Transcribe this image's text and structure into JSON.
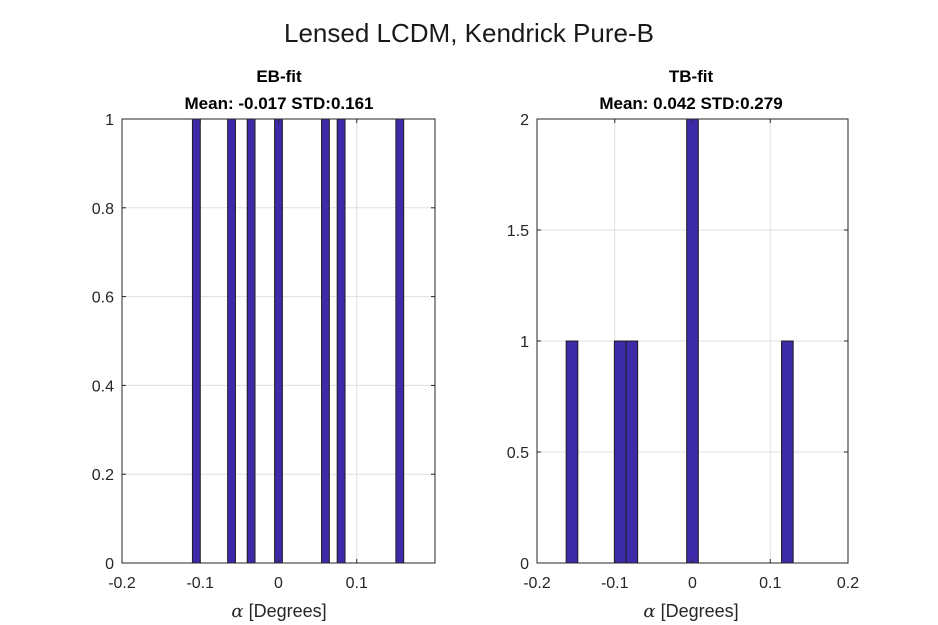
{
  "figure": {
    "title": "Lensed LCDM, Kendrick Pure-B",
    "bar_color": "#3c2aa8"
  },
  "chart_data": [
    {
      "type": "bar",
      "title": "EB-fit",
      "subtitle": "Mean: -0.017 STD:0.161",
      "xlabel_symbol": "α",
      "xlabel": "[Degrees]",
      "xlim": [
        -0.2,
        0.2
      ],
      "ylim": [
        0,
        1
      ],
      "xticks": [
        -0.2,
        -0.1,
        0,
        0.1
      ],
      "xtick_labels": [
        "-0.2",
        "-0.1",
        "0",
        "0.1"
      ],
      "yticks": [
        0,
        0.2,
        0.4,
        0.6,
        0.8,
        1
      ],
      "ytick_labels": [
        "0",
        "0.2",
        "0.4",
        "0.6",
        "0.8",
        "1"
      ],
      "bin_width": 0.01,
      "x": [
        -0.105,
        -0.06,
        -0.035,
        0.0,
        0.06,
        0.08,
        0.155
      ],
      "values": [
        1,
        1,
        1,
        1,
        1,
        1,
        1
      ],
      "grid": true
    },
    {
      "type": "bar",
      "title": "TB-fit",
      "subtitle": "Mean: 0.042 STD:0.279",
      "xlabel_symbol": "α",
      "xlabel": "[Degrees]",
      "xlim": [
        -0.2,
        0.2
      ],
      "ylim": [
        0,
        2
      ],
      "xticks": [
        -0.2,
        -0.1,
        0,
        0.1,
        0.2
      ],
      "xtick_labels": [
        "-0.2",
        "-0.1",
        "0",
        "0.1",
        "0.2"
      ],
      "yticks": [
        0,
        0.5,
        1,
        1.5,
        2
      ],
      "ytick_labels": [
        "0",
        "0.5",
        "1",
        "1.5",
        "2"
      ],
      "bin_width": 0.015,
      "x": [
        -0.155,
        -0.093,
        -0.078,
        0.0,
        0.122
      ],
      "values": [
        1,
        1,
        1,
        2,
        1
      ],
      "grid": true
    }
  ]
}
